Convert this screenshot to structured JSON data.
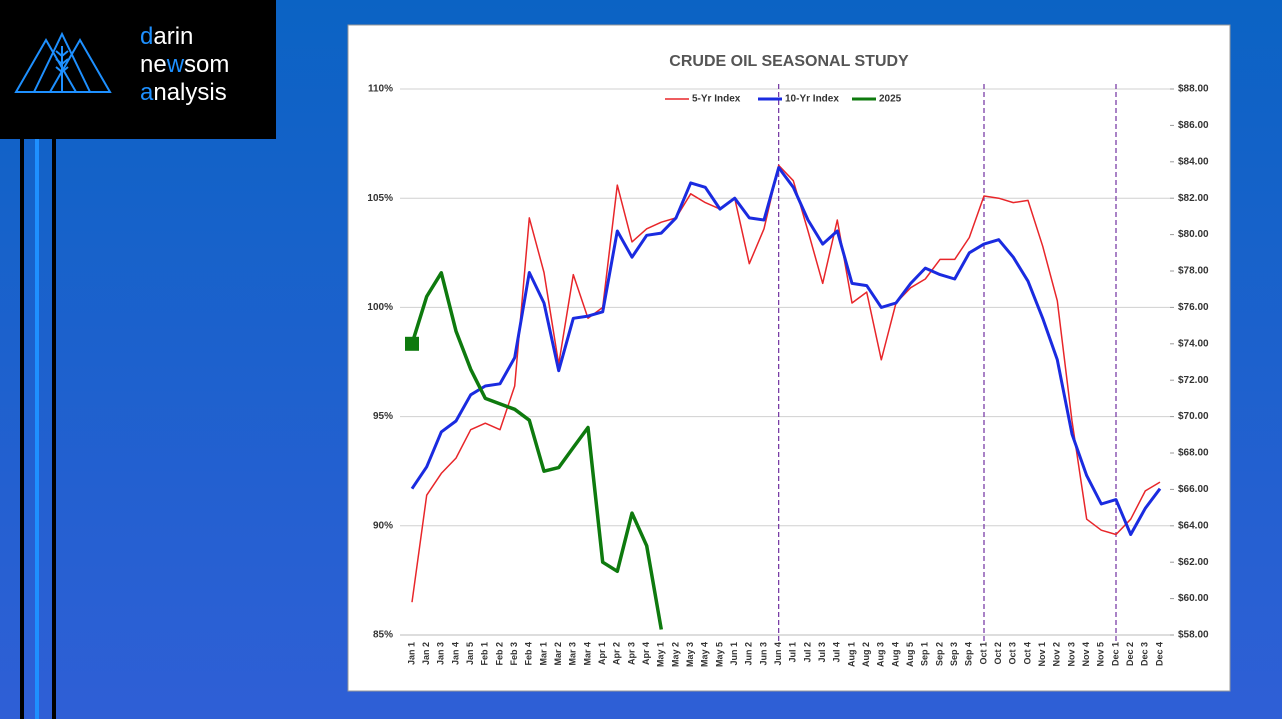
{
  "logo": {
    "lines": [
      [
        {
          "text": "d",
          "accent": true
        },
        {
          "text": "arin",
          "accent": false
        }
      ],
      [
        {
          "text": "ne",
          "accent": false
        },
        {
          "text": "w",
          "accent": true
        },
        {
          "text": "som",
          "accent": false
        }
      ],
      [
        {
          "text": "a",
          "accent": true
        },
        {
          "text": "nalysis",
          "accent": false
        }
      ]
    ]
  },
  "chart_data": {
    "type": "line",
    "title": "CRUDE OIL SEASONAL STUDY",
    "categories": [
      "Jan 1",
      "Jan 2",
      "Jan 3",
      "Jan 4",
      "Jan 5",
      "Feb 1",
      "Feb 2",
      "Feb 3",
      "Feb 4",
      "Mar 1",
      "Mar 2",
      "Mar 3",
      "Mar 4",
      "Apr 1",
      "Apr 2",
      "Apr 3",
      "Apr 4",
      "May 1",
      "May 2",
      "May 3",
      "May 4",
      "May 5",
      "Jun 1",
      "Jun 2",
      "Jun 3",
      "Jun 4",
      "Jul 1",
      "Jul 2",
      "Jul 3",
      "Jul 4",
      "Aug 1",
      "Aug 2",
      "Aug 3",
      "Aug 4",
      "Aug 5",
      "Sep 1",
      "Sep 2",
      "Sep 3",
      "Sep 4",
      "Oct 1",
      "Oct 2",
      "Oct 3",
      "Oct 4",
      "Nov 1",
      "Nov 2",
      "Nov 3",
      "Nov 4",
      "Nov 5",
      "Dec 1",
      "Dec 2",
      "Dec 3",
      "Dec 4"
    ],
    "series": [
      {
        "name": "5-Yr Index",
        "color": "#e8262a",
        "axis": "y",
        "values": [
          86.5,
          91.4,
          92.4,
          93.1,
          94.4,
          94.7,
          94.4,
          96.4,
          104.1,
          101.6,
          97.4,
          101.5,
          99.5,
          100.0,
          105.6,
          103.0,
          103.6,
          103.9,
          104.1,
          105.2,
          104.8,
          104.5,
          105.0,
          102.0,
          103.6,
          106.5,
          105.8,
          103.5,
          101.1,
          104.0,
          100.2,
          100.7,
          97.6,
          100.2,
          100.9,
          101.3,
          102.2,
          102.2,
          103.2,
          105.1,
          105.0,
          104.8,
          104.9,
          102.8,
          100.3,
          94.8,
          90.3,
          89.8,
          89.6,
          90.3,
          91.6,
          92.0
        ]
      },
      {
        "name": "10-Yr Index",
        "color": "#1a2be0",
        "axis": "y",
        "values": [
          91.7,
          92.7,
          94.3,
          94.8,
          96.0,
          96.4,
          96.5,
          97.7,
          101.6,
          100.2,
          97.1,
          99.5,
          99.6,
          99.8,
          103.5,
          102.3,
          103.3,
          103.4,
          104.1,
          105.7,
          105.5,
          104.5,
          105.0,
          104.1,
          104.0,
          106.4,
          105.5,
          104.0,
          102.9,
          103.5,
          101.1,
          101.0,
          100.0,
          100.2,
          101.1,
          101.8,
          101.5,
          101.3,
          102.5,
          102.9,
          103.1,
          102.3,
          101.2,
          99.5,
          97.6,
          94.2,
          92.3,
          91.0,
          91.2,
          89.6,
          90.8,
          91.7
        ]
      },
      {
        "name": "2025",
        "color": "#0e7a0e",
        "axis": "y2",
        "values": [
          74.0,
          76.6,
          77.9,
          74.7,
          72.6,
          71.0,
          70.7,
          70.4,
          69.8,
          67.0,
          67.2,
          68.3,
          69.4,
          62.0,
          61.5,
          64.7,
          62.9,
          58.3,
          null,
          null,
          null,
          null,
          null,
          null,
          null,
          null,
          null,
          null,
          null,
          null,
          null,
          null,
          null,
          null,
          null,
          null,
          null,
          null,
          null,
          null,
          null,
          null,
          null,
          null,
          null,
          null,
          null,
          null,
          null,
          null,
          null,
          null
        ]
      }
    ],
    "ylim": [
      85,
      110
    ],
    "yticks": [
      {
        "value": 85,
        "label": "85%"
      },
      {
        "value": 90,
        "label": "90%"
      },
      {
        "value": 95,
        "label": "95%"
      },
      {
        "value": 100,
        "label": "100%"
      },
      {
        "value": 105,
        "label": "105%"
      },
      {
        "value": 110,
        "label": "110%"
      }
    ],
    "y2lim": [
      58,
      88
    ],
    "y2ticks": [
      {
        "value": 58,
        "label": "$58.00"
      },
      {
        "value": 60,
        "label": "$60.00"
      },
      {
        "value": 62,
        "label": "$62.00"
      },
      {
        "value": 64,
        "label": "$64.00"
      },
      {
        "value": 66,
        "label": "$66.00"
      },
      {
        "value": 68,
        "label": "$68.00"
      },
      {
        "value": 70,
        "label": "$70.00"
      },
      {
        "value": 72,
        "label": "$72.00"
      },
      {
        "value": 74,
        "label": "$74.00"
      },
      {
        "value": 76,
        "label": "$76.00"
      },
      {
        "value": 78,
        "label": "$78.00"
      },
      {
        "value": 80,
        "label": "$80.00"
      },
      {
        "value": 82,
        "label": "$82.00"
      },
      {
        "value": 84,
        "label": "$84.00"
      },
      {
        "value": 86,
        "label": "$86.00"
      },
      {
        "value": 88,
        "label": "$88.00"
      }
    ],
    "grid": true,
    "legend": "top",
    "vertical_lines": [
      "Jun 4",
      "Oct 1",
      "Dec 1"
    ]
  }
}
